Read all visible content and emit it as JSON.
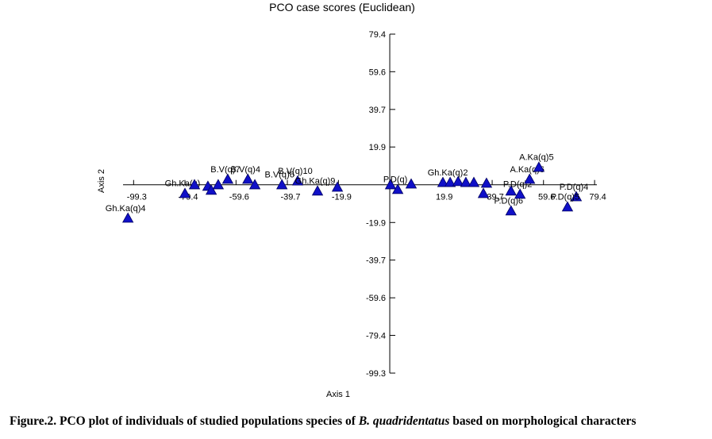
{
  "chart_data": {
    "type": "scatter",
    "title": "PCO case scores (Euclidean)",
    "x_label": "Axis 1",
    "y_label": "Axis 2",
    "xlim": [
      -103.4,
      80.3
    ],
    "ylim": [
      -99.3,
      79.4
    ],
    "xticks": [
      -99.3,
      -79.4,
      -59.6,
      -39.7,
      -19.9,
      19.9,
      39.7,
      59.6,
      79.4
    ],
    "yticks": [
      79.4,
      59.6,
      39.7,
      19.9,
      -19.9,
      -39.7,
      -59.6,
      -79.4,
      -99.3
    ],
    "color": "#1010c8",
    "x": [
      -101.5,
      -79.4,
      -75.7,
      -70.5,
      -69.2,
      -66.5,
      -62.8,
      -55.0,
      -52.3,
      -41.8,
      -35.7,
      -28.0,
      -20.3,
      0.3,
      3.1,
      8.3,
      20.6,
      23.4,
      26.5,
      29.5,
      32.6,
      36.3,
      37.5,
      47.0,
      47.0,
      50.5,
      54.2,
      57.8,
      72.3,
      68.9
    ],
    "y": [
      -17.6,
      -4.6,
      0,
      -0.8,
      -2.9,
      0,
      2.9,
      2.9,
      0,
      0,
      2.0,
      -3.3,
      -1.3,
      0,
      -2.5,
      0.4,
      1.2,
      1.2,
      1.7,
      1.2,
      1.2,
      -4.6,
      0.8,
      -3.3,
      -13.8,
      -5.0,
      2.9,
      9.2,
      -6.3,
      -11.7
    ],
    "point_labels": [
      "Gh.Ka(q)4",
      "Gh.Ka(q)",
      null,
      null,
      null,
      null,
      "B.V(q)7",
      "B.V(q)4",
      null,
      "B.V(q)6",
      "B.V(q)10",
      "Gh.Ka(q)9",
      null,
      null,
      "P.D(q)",
      null,
      null,
      "Gh.Ka(q)2",
      null,
      null,
      null,
      null,
      null,
      null,
      "P.D(q)6",
      "P.D(q)2",
      "A.Ka(q)6",
      "A.Ka(q)5",
      "P.D(q)4",
      "P.D(q)5"
    ]
  },
  "caption": {
    "prefix": "Figure.2. PCO plot of individuals of studied populations species of ",
    "italic": "B. quadridentatus",
    "suffix": " based on morphological characters"
  }
}
